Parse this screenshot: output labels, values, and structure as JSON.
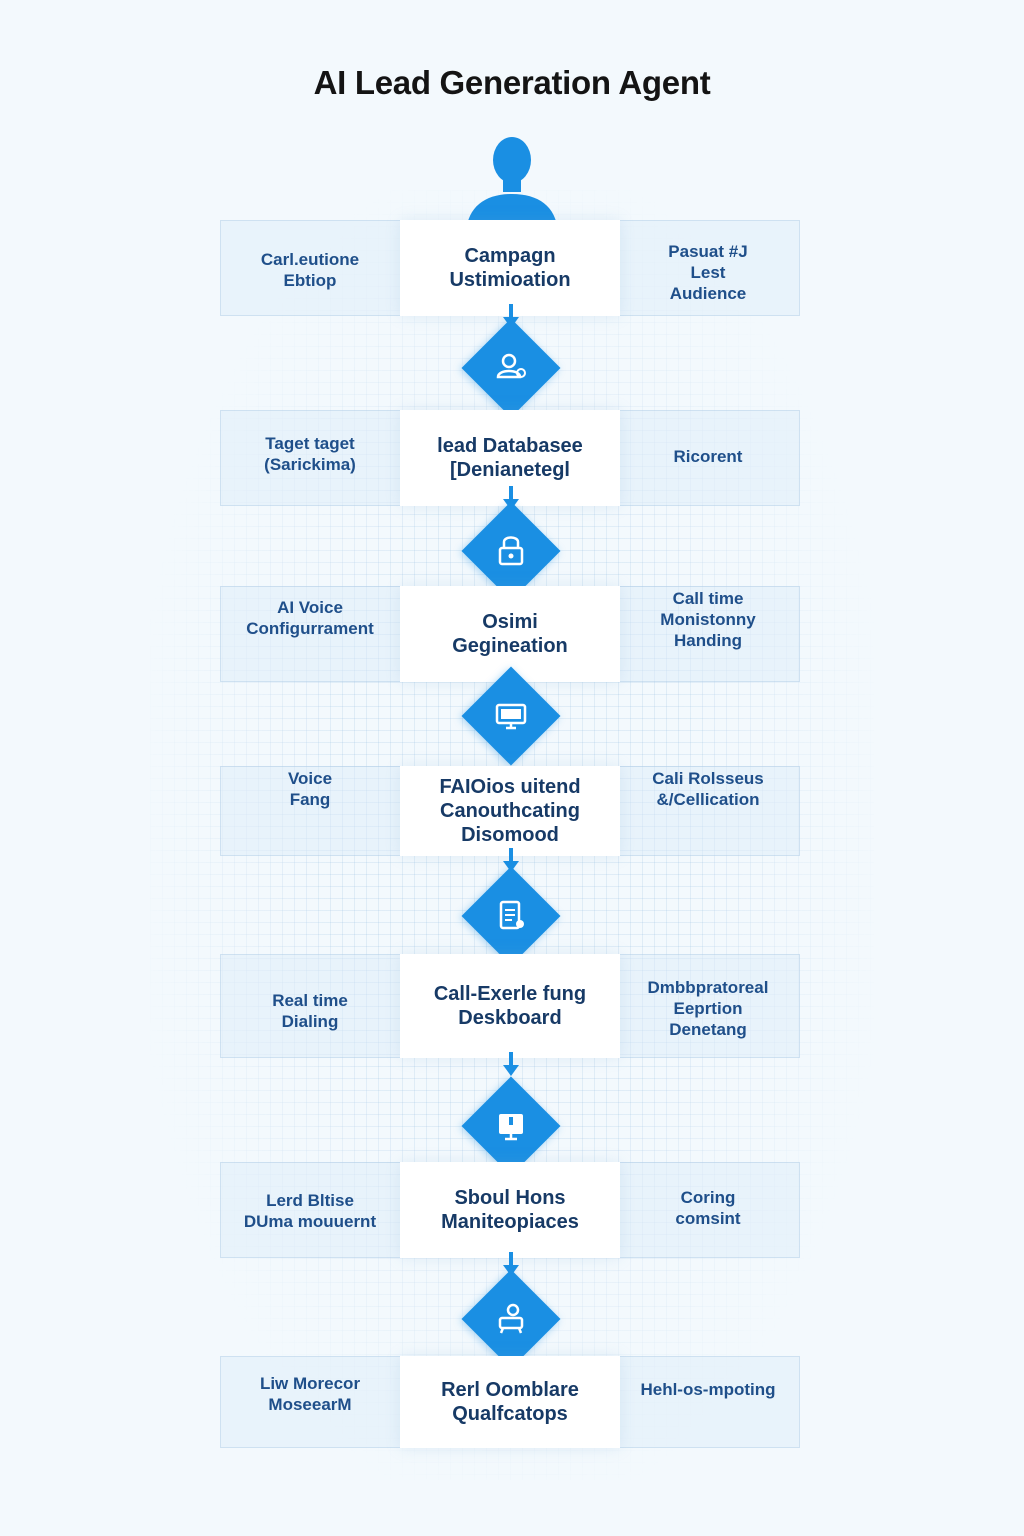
{
  "title": "AI Lead Generation Agent",
  "accent_color": "#1a8fe3",
  "text_color": "#173a66",
  "steps": [
    {
      "center": "Campagn\nUstimioation",
      "left": "Carl.eutione\nEbtiop",
      "right": "Pasuat #J\nLest\nAudience",
      "icon": "user-search-icon"
    },
    {
      "center": "lead Databasee\n[Denianetegl",
      "left": "Taget taget\n(Sarickima)",
      "right": "Ricorent",
      "icon": "lock-icon"
    },
    {
      "center": "Osimi\nGegineation",
      "left": "AI Voice\nConfigurrament",
      "right": "Call time\nMonistonny\nHanding",
      "icon": "monitor-icon"
    },
    {
      "center": "FAIOios uitend\nCanouthcating\nDisomood",
      "left": "Voice\nFang",
      "right": "Cali Rolsseus\n&/Cellication",
      "icon": "document-icon"
    },
    {
      "center": "Call-Exerle fung\nDeskboard",
      "left": "Real time\nDialing",
      "right": "Dmbbpratoreal\nEeprtion\nDenetang",
      "icon": "dashboard-icon"
    },
    {
      "center": "Sboul Hons\nManiteopiaces",
      "left": "Lerd Bltise\nDUma mouuernt",
      "right": "Coring\ncomsint",
      "icon": "robot-icon"
    },
    {
      "center": "Rerl Oomblare\nQualfcatops",
      "left": "Liw Morecor\nMoseearM",
      "right": "Hehl-os-mpoting",
      "icon": ""
    }
  ]
}
